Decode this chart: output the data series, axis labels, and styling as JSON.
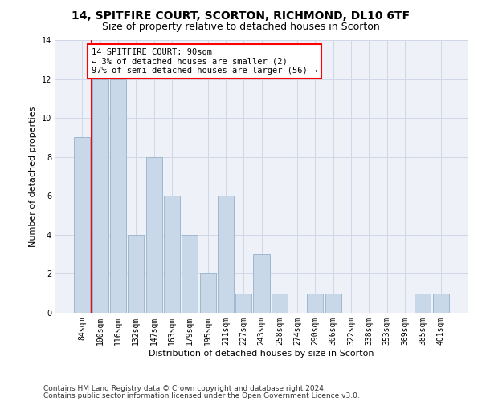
{
  "title": "14, SPITFIRE COURT, SCORTON, RICHMOND, DL10 6TF",
  "subtitle": "Size of property relative to detached houses in Scorton",
  "xlabel": "Distribution of detached houses by size in Scorton",
  "ylabel": "Number of detached properties",
  "categories": [
    "84sqm",
    "100sqm",
    "116sqm",
    "132sqm",
    "147sqm",
    "163sqm",
    "179sqm",
    "195sqm",
    "211sqm",
    "227sqm",
    "243sqm",
    "258sqm",
    "274sqm",
    "290sqm",
    "306sqm",
    "322sqm",
    "338sqm",
    "353sqm",
    "369sqm",
    "385sqm",
    "401sqm"
  ],
  "values": [
    9,
    12,
    12,
    4,
    8,
    6,
    4,
    2,
    6,
    1,
    3,
    1,
    0,
    1,
    1,
    0,
    0,
    0,
    0,
    1,
    1
  ],
  "bar_color": "#c8d8e8",
  "bar_edge_color": "#a0b8d0",
  "red_line_x": 0.5,
  "annotation_text": "14 SPITFIRE COURT: 90sqm\n← 3% of detached houses are smaller (2)\n97% of semi-detached houses are larger (56) →",
  "annotation_box_color": "white",
  "annotation_box_edge_color": "red",
  "ylim": [
    0,
    14
  ],
  "yticks": [
    0,
    2,
    4,
    6,
    8,
    10,
    12,
    14
  ],
  "grid_color": "#d0d8e8",
  "background_color": "#eef2f8",
  "footer_line1": "Contains HM Land Registry data © Crown copyright and database right 2024.",
  "footer_line2": "Contains public sector information licensed under the Open Government Licence v3.0.",
  "title_fontsize": 10,
  "subtitle_fontsize": 9,
  "tick_fontsize": 7,
  "ylabel_fontsize": 8,
  "xlabel_fontsize": 8,
  "annotation_fontsize": 7.5,
  "footer_fontsize": 6.5
}
